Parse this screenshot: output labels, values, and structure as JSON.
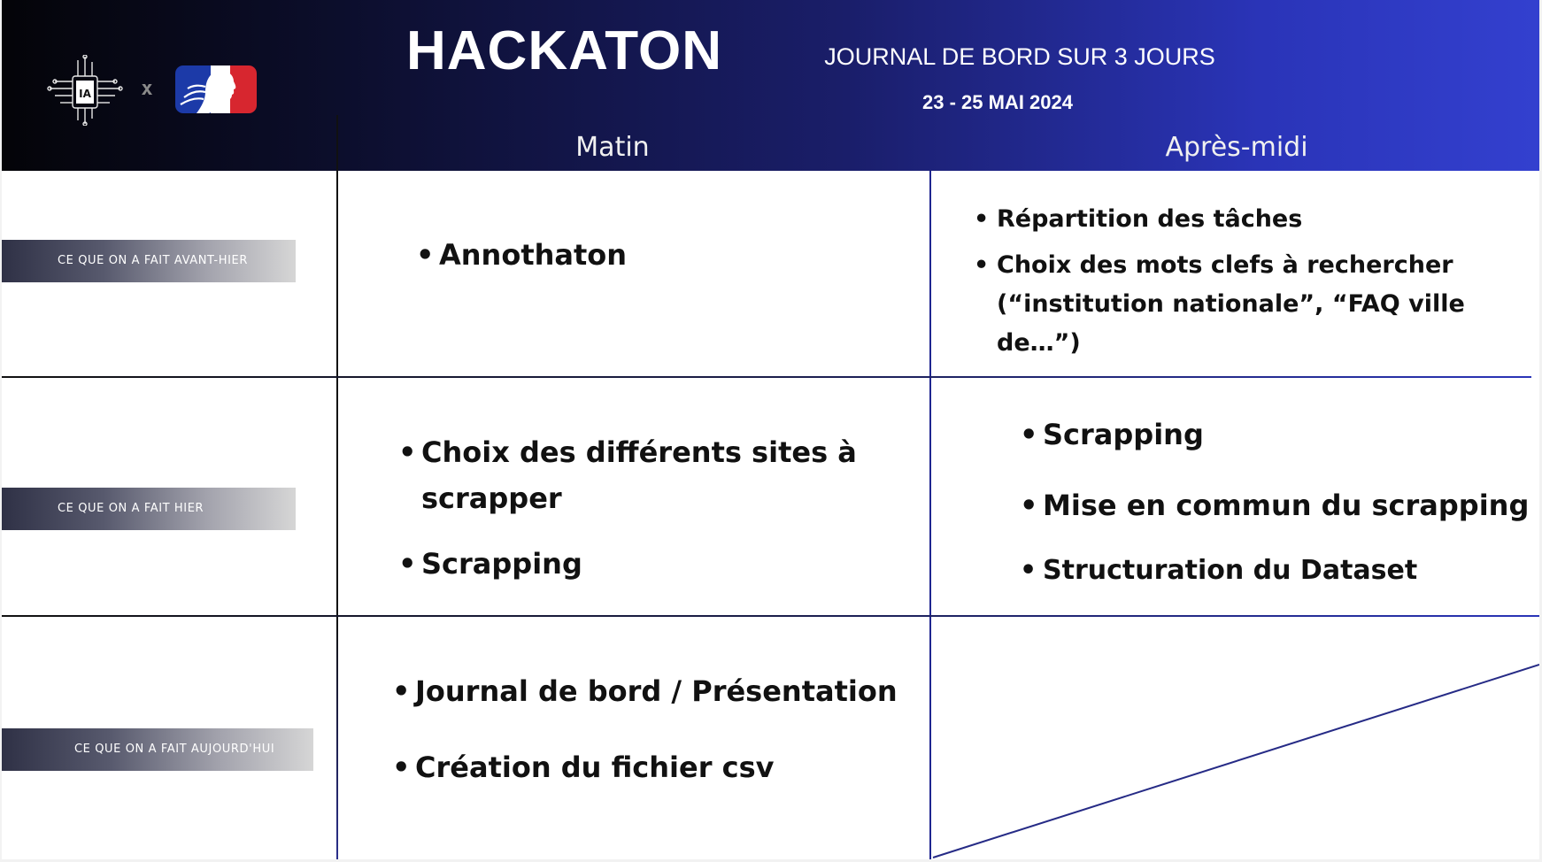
{
  "header": {
    "title": "HACKATON",
    "subtitle": "JOURNAL DE BORD SUR 3 JOURS",
    "dates": "23 - 25 MAI 2024",
    "logo_ia_text": "IA",
    "logo_separator": "x",
    "columns": {
      "matin": "Matin",
      "apres_midi": "Après-midi"
    }
  },
  "colors": {
    "header_dark": "#040408",
    "header_blue": "#3340cf",
    "grid_line": "#1f2690",
    "marianne_blue": "#1c3aa8",
    "marianne_red": "#d7262f"
  },
  "rows": [
    {
      "label": "CE QUE ON A FAIT AVANT-HIER",
      "matin": [
        "Annothaton"
      ],
      "apres_midi": [
        "Répartition des tâches",
        "Choix des mots clefs à rechercher (“institution nationale”, “FAQ ville de…”)"
      ]
    },
    {
      "label": "CE QUE ON A FAIT HIER",
      "matin": [
        "Choix des différents sites à scrapper",
        "Scrapping"
      ],
      "apres_midi": [
        "Scrapping",
        "Mise en commun du scrapping",
        "Structuration du Dataset"
      ]
    },
    {
      "label": "CE QUE ON A FAIT AUJOURD'HUI",
      "matin": [
        "Journal de bord / Présentation",
        "Création du fichier csv"
      ],
      "apres_midi": []
    }
  ],
  "bullet_char": "•"
}
